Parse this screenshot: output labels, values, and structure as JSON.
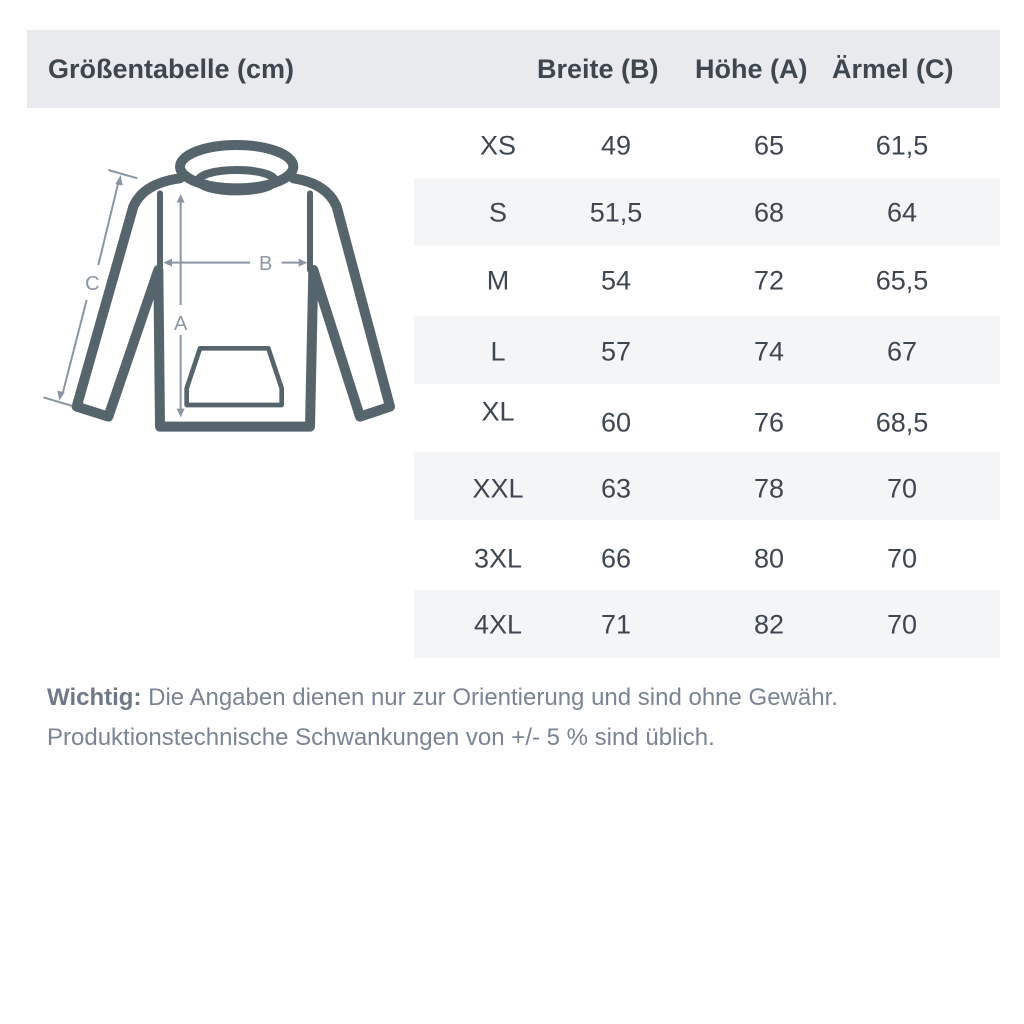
{
  "header": {
    "title": "Größentabelle (cm)",
    "columns": [
      "Breite (B)",
      "Höhe (A)",
      "Ärmel (C)"
    ]
  },
  "diagram": {
    "labels": {
      "a": "A",
      "b": "B",
      "c": "C"
    },
    "icon": "hoodie-icon"
  },
  "rows": [
    {
      "size": "XS",
      "breite": "49",
      "hoehe": "65",
      "aermel": "61,5"
    },
    {
      "size": "S",
      "breite": "51,5",
      "hoehe": "68",
      "aermel": "64"
    },
    {
      "size": "M",
      "breite": "54",
      "hoehe": "72",
      "aermel": "65,5"
    },
    {
      "size": "L",
      "breite": "57",
      "hoehe": "74",
      "aermel": "67"
    },
    {
      "size": "XL",
      "breite": "60",
      "hoehe": "76",
      "aermel": "68,5"
    },
    {
      "size": "XXL",
      "breite": "63",
      "hoehe": "78",
      "aermel": "70"
    },
    {
      "size": "3XL",
      "breite": "66",
      "hoehe": "80",
      "aermel": "70"
    },
    {
      "size": "4XL",
      "breite": "71",
      "hoehe": "82",
      "aermel": "70"
    }
  ],
  "note": {
    "bold": "Wichtig:",
    "line1": " Die Angaben dienen nur zur Orientierung und sind ohne Gewähr.",
    "line2": "Produktionstechnische Schwankungen von +/- 5 % sind üblich."
  },
  "colors": {
    "header_bg": "#e9eaee",
    "stripe": "#f4f5f7",
    "text": "#3e4650",
    "hoodie": "#56646c",
    "measure": "#8a96a3"
  }
}
